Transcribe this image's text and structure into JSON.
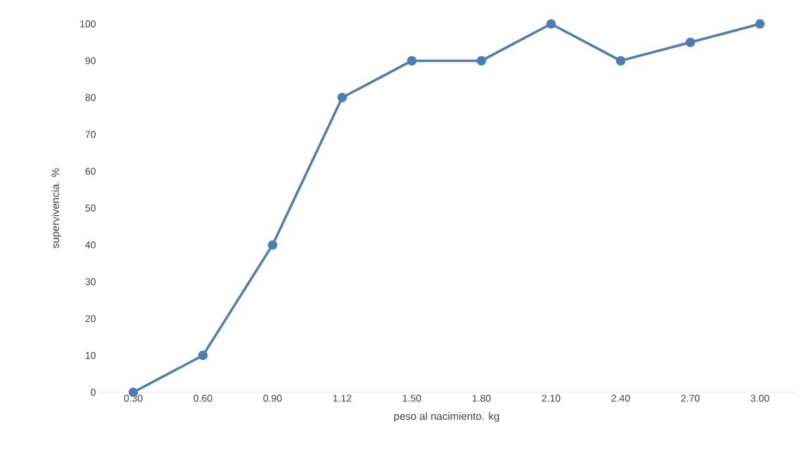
{
  "chart_data": {
    "type": "line",
    "xlabel": "peso al nacimiento. kg",
    "ylabel": "supervivencia. %",
    "categories": [
      "0.30",
      "0.60",
      "0.90",
      "1.12",
      "1.50",
      "1.80",
      "2.10",
      "2.40",
      "2.70",
      "3.00"
    ],
    "values": [
      0,
      10,
      40,
      80,
      90,
      90,
      100,
      90,
      95,
      100
    ],
    "color": "#4a7ebb",
    "marker": "circle",
    "line_style": "solid",
    "ylim": [
      0,
      100
    ],
    "yticks": [
      0,
      10,
      20,
      30,
      40,
      50,
      60,
      70,
      80,
      90,
      100
    ]
  }
}
